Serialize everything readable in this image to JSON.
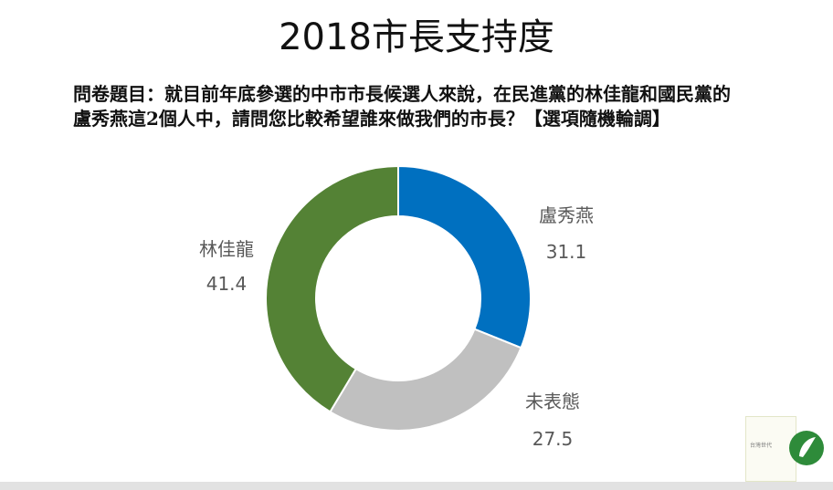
{
  "title": "2018市長支持度",
  "question": "問卷題目：就目前年底參選的中市市長候選人來說，在民進黨的林佳龍和國民黨的盧秀燕這2個人中，請問您比較希望誰來做我們的市長？【選項隨機輪調】",
  "logo": {
    "text": "台灣世代"
  },
  "chart_data": {
    "type": "pie",
    "variant": "donut",
    "title": "2018市長支持度",
    "categories": [
      "盧秀燕",
      "未表態",
      "林佳龍"
    ],
    "values": [
      31.1,
      27.5,
      41.4
    ],
    "colors": [
      "#0070c0",
      "#c0c0c0",
      "#548235"
    ],
    "start": "top",
    "direction": "clockwise",
    "legend": "none",
    "labels": "outside"
  }
}
